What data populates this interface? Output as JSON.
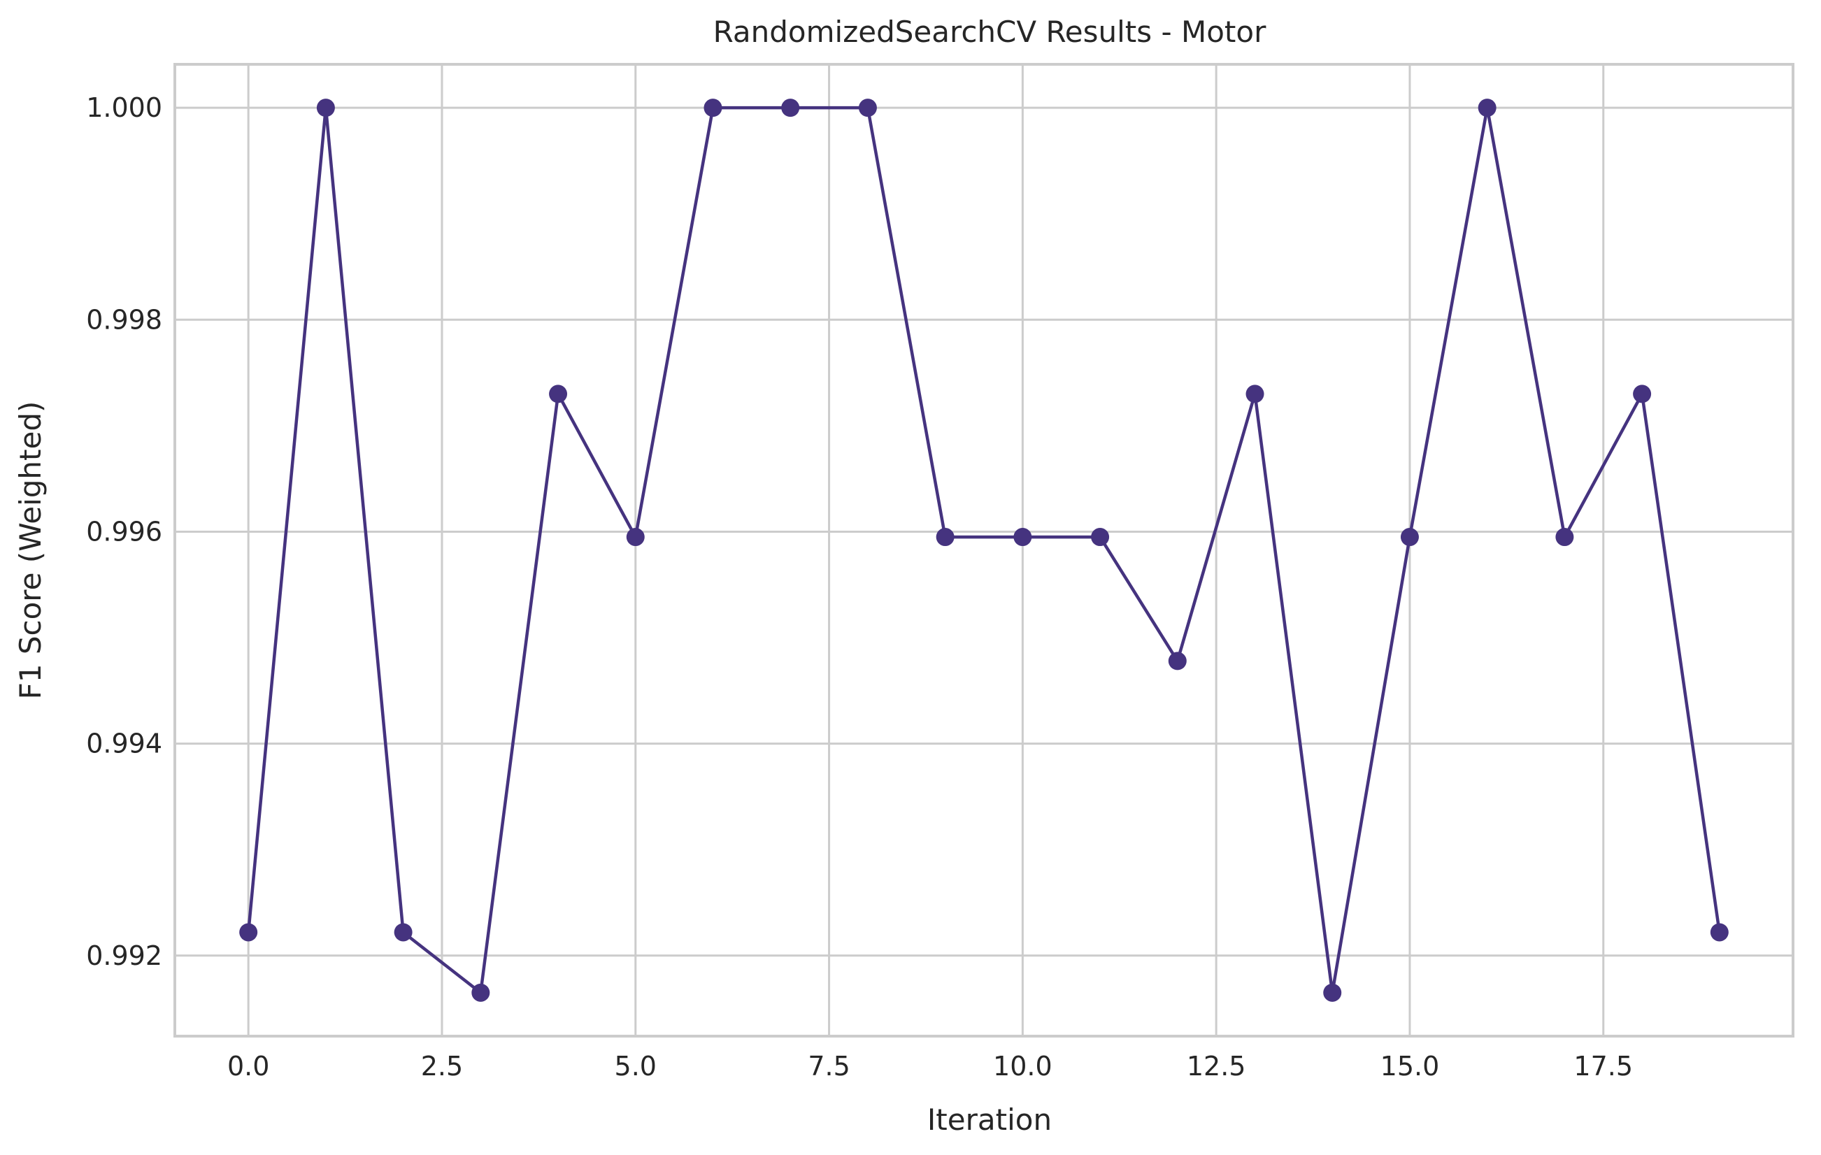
{
  "chart_data": {
    "type": "line",
    "title": "RandomizedSearchCV Results - Motor",
    "xlabel": "Iteration",
    "ylabel": "F1 Score (Weighted)",
    "x": [
      0,
      1,
      2,
      3,
      4,
      5,
      6,
      7,
      8,
      9,
      10,
      11,
      12,
      13,
      14,
      15,
      16,
      17,
      18,
      19
    ],
    "series": [
      {
        "values": [
          0.99222,
          1.0,
          0.99222,
          0.99165,
          0.9973,
          0.99595,
          1.0,
          1.0,
          1.0,
          0.99595,
          0.99595,
          0.99595,
          0.99478,
          0.9973,
          0.99165,
          0.99595,
          1.0,
          0.99595,
          0.9973,
          0.99222
        ],
        "color": "#45337f",
        "marker": "circle"
      }
    ],
    "xlim": [
      -0.95,
      19.95
    ],
    "ylim": [
      0.99124,
      1.00041
    ],
    "xticks": [
      0.0,
      2.5,
      5.0,
      7.5,
      10.0,
      12.5,
      15.0,
      17.5
    ],
    "xtick_labels": [
      "0.0",
      "2.5",
      "5.0",
      "7.5",
      "10.0",
      "12.5",
      "15.0",
      "17.5"
    ],
    "yticks": [
      0.992,
      0.994,
      0.996,
      0.998,
      1.0
    ],
    "ytick_labels": [
      "0.992",
      "0.994",
      "0.996",
      "0.998",
      "1.000"
    ],
    "grid": true
  }
}
